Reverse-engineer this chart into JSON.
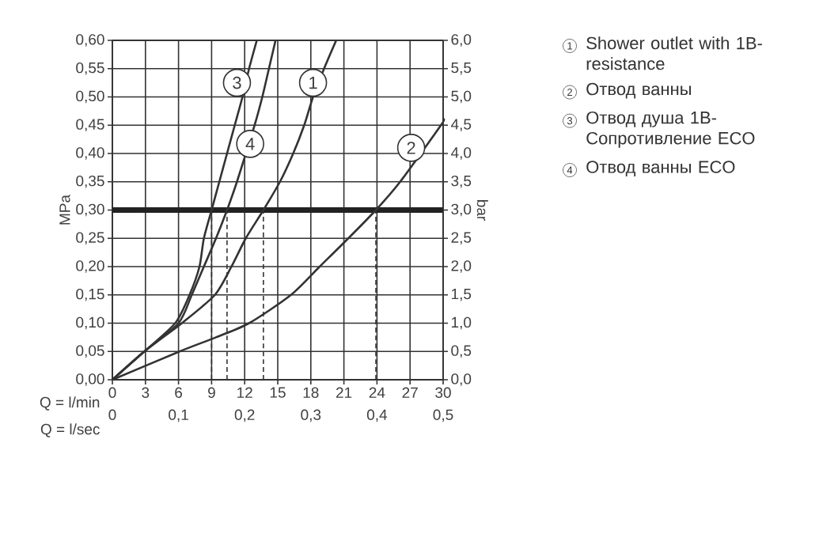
{
  "chart_data": {
    "type": "line",
    "xlabel": "Q = l/min",
    "x2label": "Q = l/sec",
    "ylabel": "MPa",
    "y2label": "bar",
    "xlim": [
      0,
      30
    ],
    "xticks": [
      0,
      3,
      6,
      9,
      12,
      15,
      18,
      21,
      24,
      27,
      30
    ],
    "x2lim": [
      0,
      0.5
    ],
    "x2ticks": [
      0,
      {
        "value": 0.1,
        "label": "0,1"
      },
      {
        "value": 0.2,
        "label": "0,2"
      },
      {
        "value": 0.3,
        "label": "0,3"
      },
      {
        "value": 0.4,
        "label": "0,4"
      },
      {
        "value": 0.5,
        "label": "0,5"
      }
    ],
    "ylim": [
      0,
      0.6
    ],
    "yticks": [
      {
        "value": 0,
        "label": "0,00"
      },
      {
        "value": 0.05,
        "label": "0,05"
      },
      {
        "value": 0.1,
        "label": "0,10"
      },
      {
        "value": 0.15,
        "label": "0,15"
      },
      {
        "value": 0.2,
        "label": "0,20"
      },
      {
        "value": 0.25,
        "label": "0,25"
      },
      {
        "value": 0.3,
        "label": "0,30"
      },
      {
        "value": 0.35,
        "label": "0,35"
      },
      {
        "value": 0.4,
        "label": "0,40"
      },
      {
        "value": 0.45,
        "label": "0,45"
      },
      {
        "value": 0.5,
        "label": "0,50"
      },
      {
        "value": 0.55,
        "label": "0,55"
      },
      {
        "value": 0.6,
        "label": "0,60"
      }
    ],
    "y2lim": [
      0,
      6
    ],
    "y2ticks": [
      {
        "value": 0,
        "label": "0,0"
      },
      {
        "value": 0.5,
        "label": "0,5"
      },
      {
        "value": 1,
        "label": "1,0"
      },
      {
        "value": 1.5,
        "label": "1,5"
      },
      {
        "value": 2,
        "label": "2,0"
      },
      {
        "value": 2.5,
        "label": "2,5"
      },
      {
        "value": 3,
        "label": "3,0"
      },
      {
        "value": 3.5,
        "label": "3,5"
      },
      {
        "value": 4,
        "label": "4,0"
      },
      {
        "value": 4.5,
        "label": "4,5"
      },
      {
        "value": 5,
        "label": "5,0"
      },
      {
        "value": 5.5,
        "label": "5,5"
      },
      {
        "value": 6,
        "label": "6,0"
      }
    ],
    "grid": true,
    "legend": "right",
    "series": [
      {
        "name": "Shower outlet with 1B-resistance",
        "color": "#333333",
        "x": [
          0,
          2.9,
          6.3,
          9.3,
          10.8,
          12.1,
          13.7,
          15.2,
          16.4,
          17.4,
          18.2,
          19.2,
          20.3
        ],
        "values": [
          0,
          0.05,
          0.1,
          0.15,
          0.2,
          0.25,
          0.3,
          0.35,
          0.4,
          0.45,
          0.5,
          0.55,
          0.6
        ]
      },
      {
        "name": "Отвод ванны",
        "color": "#333333",
        "x": [
          0,
          6.1,
          9.4,
          12.4,
          16.2,
          18.8,
          21.4,
          23.9,
          26.1,
          29.8,
          30
        ],
        "values": [
          0,
          0.05,
          0.075,
          0.1,
          0.15,
          0.2,
          0.25,
          0.3,
          0.35,
          0.45,
          0.46
        ]
      },
      {
        "name": "Отвод душа 1B-Сопротивление  ECO",
        "color": "#333333",
        "x": [
          0,
          2.9,
          5.7,
          7.0,
          7.9,
          8.3,
          9.0,
          9.7,
          10.4,
          11.1,
          11.8,
          12.4,
          13.1
        ],
        "values": [
          0,
          0.05,
          0.1,
          0.15,
          0.2,
          0.25,
          0.3,
          0.35,
          0.4,
          0.45,
          0.5,
          0.55,
          0.6
        ]
      },
      {
        "name": "Отвод ванны ECO",
        "color": "#333333",
        "x": [
          0,
          2.9,
          6.0,
          7.2,
          8.3,
          9.4,
          10.4,
          11.3,
          12.1,
          12.9,
          13.6,
          14.2,
          14.8
        ],
        "values": [
          0,
          0.05,
          0.1,
          0.15,
          0.2,
          0.25,
          0.3,
          0.35,
          null,
          0.45,
          0.5,
          0.55,
          0.6
        ]
      },
      {
        "color": "#333333",
        "line_style": "dashed",
        "x": [
          9.0,
          9.0
        ],
        "values": [
          0,
          0.3
        ]
      },
      {
        "color": "#333333",
        "line_style": "dashed",
        "x": [
          10.4,
          10.4
        ],
        "values": [
          0,
          0.3
        ]
      },
      {
        "color": "#333333",
        "line_style": "dashed",
        "x": [
          13.7,
          13.7
        ],
        "values": [
          0,
          0.3
        ]
      },
      {
        "color": "#333333",
        "line_style": "dashed",
        "x": [
          23.9,
          23.9
        ],
        "values": [
          0,
          0.3
        ]
      }
    ],
    "ref_lines": [
      {
        "axis": "y",
        "value": 0.3,
        "color": "#222222"
      }
    ],
    "annotations": [
      {
        "text": "1",
        "x": 18.2,
        "y": 0.525
      },
      {
        "text": "2",
        "x": 27.1,
        "y": 0.41
      },
      {
        "text": "3",
        "x": 11.3,
        "y": 0.525
      },
      {
        "text": "4",
        "x": 12.5,
        "y": 0.417
      }
    ]
  }
}
